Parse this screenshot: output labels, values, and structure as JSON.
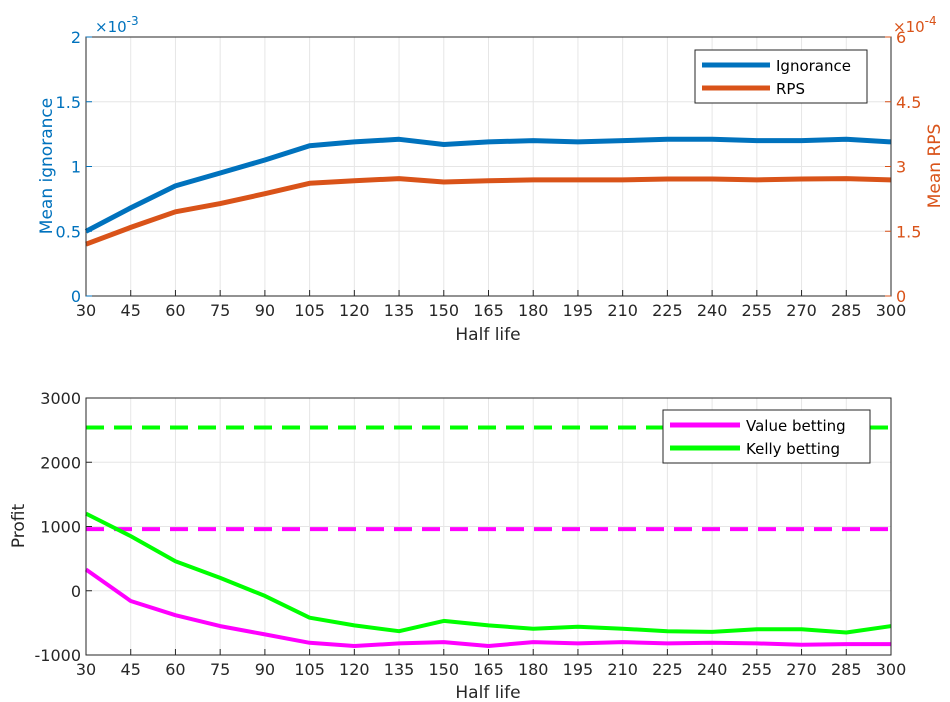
{
  "chart_data": [
    {
      "type": "line",
      "xlabel": "Half life",
      "x": [
        30,
        45,
        60,
        75,
        90,
        105,
        120,
        135,
        150,
        165,
        180,
        195,
        210,
        225,
        240,
        255,
        270,
        285,
        300
      ],
      "xlim": [
        30,
        300
      ],
      "xticks": [
        "30",
        "45",
        "60",
        "75",
        "90",
        "105",
        "120",
        "135",
        "150",
        "165",
        "180",
        "195",
        "210",
        "225",
        "240",
        "255",
        "270",
        "285",
        "300"
      ],
      "grid": true,
      "legend_position": "top-right",
      "left_axis": {
        "label": "Mean ignorance",
        "color": "#0072BD",
        "ylim": [
          0,
          2
        ],
        "ticks": [
          "0",
          "0.5",
          "1",
          "1.5",
          "2"
        ],
        "exponent": "×10",
        "exponent_power": "-3"
      },
      "right_axis": {
        "label": "Mean RPS",
        "color": "#D95319",
        "ylim": [
          0,
          6
        ],
        "ticks": [
          "0",
          "1.5",
          "3",
          "4.5",
          "6"
        ],
        "exponent": "×10",
        "exponent_power": "-4"
      },
      "series": [
        {
          "name": "Ignorance",
          "axis": "left",
          "color": "#0072BD",
          "values": [
            0.5,
            0.68,
            0.85,
            0.95,
            1.05,
            1.16,
            1.19,
            1.21,
            1.17,
            1.19,
            1.2,
            1.19,
            1.2,
            1.21,
            1.21,
            1.2,
            1.2,
            1.21,
            1.19
          ]
        },
        {
          "name": "RPS",
          "axis": "right",
          "color": "#D95319",
          "values": [
            1.2,
            1.59,
            1.95,
            2.14,
            2.37,
            2.61,
            2.67,
            2.72,
            2.64,
            2.67,
            2.69,
            2.69,
            2.69,
            2.71,
            2.71,
            2.69,
            2.71,
            2.72,
            2.69
          ]
        }
      ]
    },
    {
      "type": "line",
      "xlabel": "Half life",
      "ylabel": "Profit",
      "x": [
        30,
        45,
        60,
        75,
        90,
        105,
        120,
        135,
        150,
        165,
        180,
        195,
        210,
        225,
        240,
        255,
        270,
        285,
        300
      ],
      "xlim": [
        30,
        300
      ],
      "xticks": [
        "30",
        "45",
        "60",
        "75",
        "90",
        "105",
        "120",
        "135",
        "150",
        "165",
        "180",
        "195",
        "210",
        "225",
        "240",
        "255",
        "270",
        "285",
        "300"
      ],
      "ylim": [
        -1000,
        3000
      ],
      "yticks": [
        "-1000",
        "0",
        "1000",
        "2000",
        "3000"
      ],
      "grid": true,
      "legend_position": "top-right",
      "series": [
        {
          "name": "Value betting",
          "color": "#FF00FF",
          "values": [
            330,
            -160,
            -380,
            -550,
            -680,
            -810,
            -860,
            -820,
            -800,
            -860,
            -800,
            -820,
            -800,
            -820,
            -810,
            -820,
            -840,
            -830,
            -830
          ]
        },
        {
          "name": "Kelly betting",
          "color": "#00FF00",
          "values": [
            1200,
            850,
            460,
            200,
            -80,
            -420,
            -540,
            -630,
            -470,
            -540,
            -590,
            -560,
            -590,
            -630,
            -640,
            -600,
            -600,
            -650,
            -550
          ]
        }
      ],
      "reference_lines": [
        {
          "color": "#FF00FF",
          "style": "dashed",
          "value": 960
        },
        {
          "color": "#00FF00",
          "style": "dashed",
          "value": 2540
        }
      ]
    }
  ]
}
